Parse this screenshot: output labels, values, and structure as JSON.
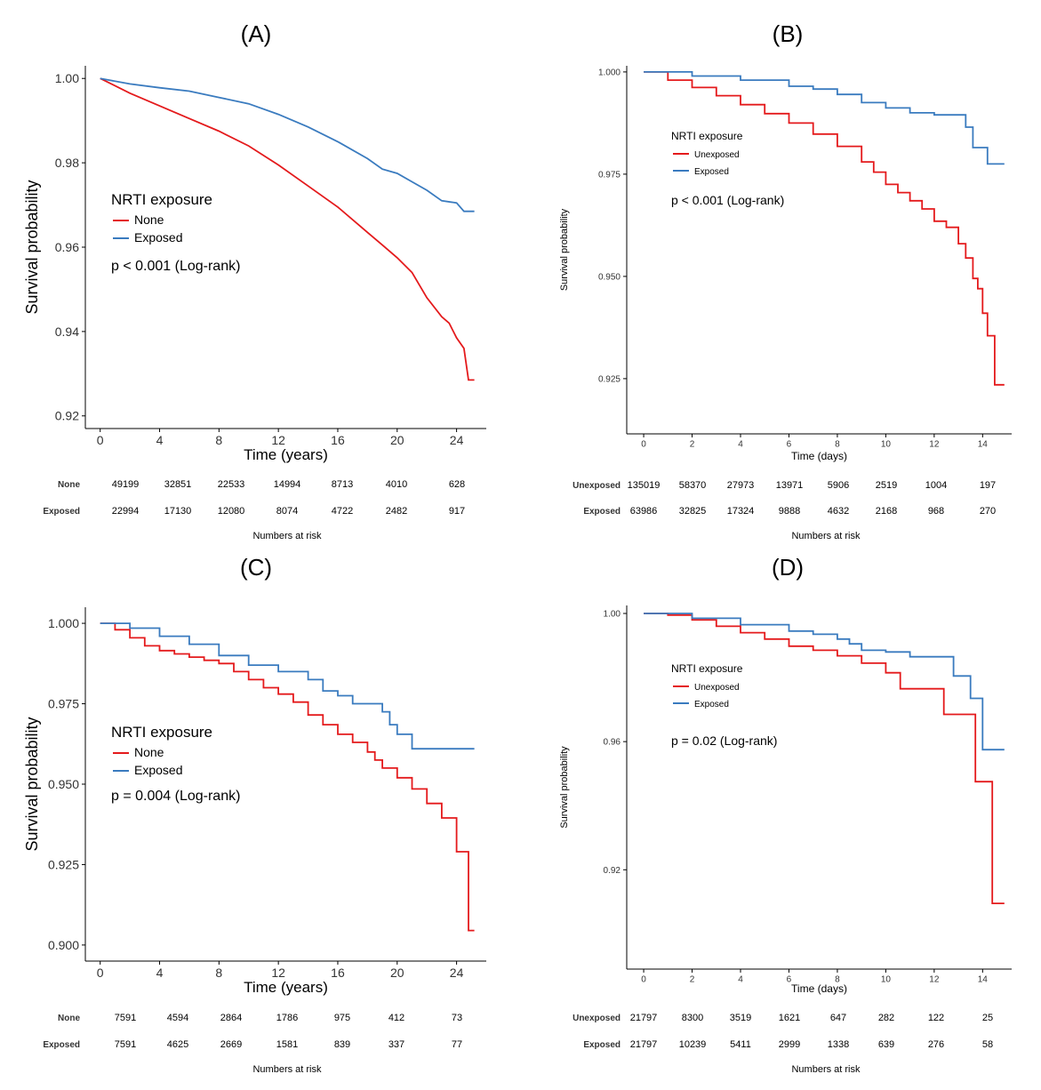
{
  "colors": {
    "unexposed": "#e41a1c",
    "exposed": "#3a7bbf",
    "axis": "#000000",
    "tick_text": "#333333"
  },
  "chart_data": [
    {
      "id": "A",
      "type": "line",
      "panel_label": "(A)",
      "xlabel": "Time (years)",
      "ylabel": "Survival probability",
      "xlim": [
        -1,
        26
      ],
      "ylim": [
        0.917,
        1.003
      ],
      "xticks": [
        0,
        4,
        8,
        12,
        16,
        20,
        24
      ],
      "yticks": [
        0.92,
        0.94,
        0.96,
        0.98,
        1.0
      ],
      "ytick_labels": [
        "0.92",
        "0.94",
        "0.96",
        "0.98",
        "1.00"
      ],
      "legend_title": "NRTI exposure",
      "annotation": "p < 0.001 (Log-rank)",
      "series": [
        {
          "name": "None",
          "color": "#e41a1c",
          "step": false,
          "x": [
            0,
            2,
            4,
            6,
            8,
            10,
            12,
            14,
            16,
            18,
            19,
            20,
            21,
            22,
            23,
            23.5,
            24,
            24.5,
            24.8,
            25.2
          ],
          "y": [
            1.0,
            0.9965,
            0.9935,
            0.9905,
            0.9875,
            0.984,
            0.9795,
            0.9745,
            0.9695,
            0.9635,
            0.9605,
            0.9575,
            0.954,
            0.948,
            0.9435,
            0.942,
            0.9385,
            0.936,
            0.9285,
            0.9285
          ]
        },
        {
          "name": "Exposed",
          "color": "#3a7bbf",
          "step": false,
          "x": [
            0,
            2,
            4,
            6,
            8,
            10,
            12,
            14,
            16,
            18,
            19,
            20,
            21,
            22,
            23,
            24,
            24.5,
            25.2
          ],
          "y": [
            1.0,
            0.9987,
            0.9978,
            0.997,
            0.9955,
            0.994,
            0.9915,
            0.9885,
            0.985,
            0.981,
            0.9785,
            0.9775,
            0.9755,
            0.9735,
            0.971,
            0.9705,
            0.9685,
            0.9685
          ]
        }
      ],
      "risk_table": {
        "title": "Numbers at risk",
        "rows": [
          {
            "label": "None",
            "values": [
              "49199",
              "32851",
              "22533",
              "14994",
              "8713",
              "4010",
              "628"
            ]
          },
          {
            "label": "Exposed",
            "values": [
              "22994",
              "17130",
              "12080",
              "8074",
              "4722",
              "2482",
              "917"
            ]
          }
        ]
      }
    },
    {
      "id": "B",
      "type": "line",
      "panel_label": "(B)",
      "xlabel": "Time (days)",
      "ylabel": "Survival probability",
      "xlim": [
        -0.7,
        15.2
      ],
      "ylim": [
        0.9115,
        1.0015
      ],
      "xticks": [
        0,
        2,
        4,
        6,
        8,
        10,
        12,
        14
      ],
      "yticks": [
        0.925,
        0.95,
        0.975,
        1.0
      ],
      "ytick_labels": [
        "0.925",
        "0.950",
        "0.975",
        "1.000"
      ],
      "legend_title": "NRTI exposure",
      "annotation": "p < 0.001 (Log-rank)",
      "series": [
        {
          "name": "Unexposed",
          "color": "#e41a1c",
          "step": true,
          "x": [
            0,
            1,
            2,
            3,
            4,
            5,
            6,
            7,
            8,
            9,
            9.5,
            10,
            10.5,
            11,
            11.5,
            12,
            12.5,
            13,
            13.3,
            13.6,
            13.8,
            14,
            14.2,
            14.5,
            14.9
          ],
          "y": [
            1.0,
            0.998,
            0.9962,
            0.9942,
            0.992,
            0.9898,
            0.9875,
            0.9848,
            0.9818,
            0.978,
            0.9755,
            0.9725,
            0.9705,
            0.9685,
            0.9665,
            0.9635,
            0.962,
            0.958,
            0.9545,
            0.9495,
            0.947,
            0.941,
            0.9355,
            0.9235,
            0.9235
          ]
        },
        {
          "name": "Exposed",
          "color": "#3a7bbf",
          "step": true,
          "x": [
            0,
            2,
            4,
            6,
            7,
            8,
            9,
            10,
            11,
            12,
            13,
            13.3,
            13.6,
            14,
            14.2,
            14.9
          ],
          "y": [
            1.0,
            0.999,
            0.998,
            0.9965,
            0.9958,
            0.9945,
            0.9925,
            0.9912,
            0.99,
            0.9895,
            0.9895,
            0.9865,
            0.9815,
            0.9815,
            0.9775,
            0.9775
          ]
        }
      ],
      "risk_table": {
        "title": "Numbers at risk",
        "rows": [
          {
            "label": "Unexposed",
            "values": [
              "135019",
              "58370",
              "27973",
              "13971",
              "5906",
              "2519",
              "1004",
              "197"
            ]
          },
          {
            "label": "Exposed",
            "values": [
              "63986",
              "32825",
              "17324",
              "9888",
              "4632",
              "2168",
              "968",
              "270"
            ]
          }
        ]
      }
    },
    {
      "id": "C",
      "type": "line",
      "panel_label": "(C)",
      "xlabel": "Time (years)",
      "ylabel": "Survival probability",
      "xlim": [
        -1,
        26
      ],
      "ylim": [
        0.895,
        1.005
      ],
      "xticks": [
        0,
        4,
        8,
        12,
        16,
        20,
        24
      ],
      "yticks": [
        0.9,
        0.925,
        0.95,
        0.975,
        1.0
      ],
      "ytick_labels": [
        "0.900",
        "0.925",
        "0.950",
        "0.975",
        "1.000"
      ],
      "legend_title": "NRTI exposure",
      "annotation": "p = 0.004 (Log-rank)",
      "series": [
        {
          "name": "None",
          "color": "#e41a1c",
          "step": true,
          "x": [
            0,
            1,
            2,
            3,
            4,
            5,
            6,
            7,
            8,
            9,
            10,
            11,
            12,
            13,
            14,
            15,
            16,
            17,
            18,
            18.5,
            19,
            20,
            21,
            22,
            23,
            24,
            24.8,
            25.2
          ],
          "y": [
            1.0,
            0.998,
            0.9955,
            0.993,
            0.9915,
            0.9905,
            0.9895,
            0.9885,
            0.9875,
            0.985,
            0.9825,
            0.98,
            0.978,
            0.9755,
            0.9715,
            0.9685,
            0.9655,
            0.963,
            0.96,
            0.9575,
            0.955,
            0.952,
            0.9485,
            0.944,
            0.9395,
            0.929,
            0.9045,
            0.9045
          ]
        },
        {
          "name": "Exposed",
          "color": "#3a7bbf",
          "step": true,
          "x": [
            0,
            2,
            4,
            6,
            8,
            10,
            12,
            14,
            15,
            16,
            17,
            18,
            19,
            19.5,
            20,
            21,
            25.2
          ],
          "y": [
            1.0,
            0.9985,
            0.996,
            0.9935,
            0.99,
            0.987,
            0.985,
            0.9825,
            0.979,
            0.9775,
            0.975,
            0.975,
            0.9725,
            0.9685,
            0.9655,
            0.961,
            0.961
          ]
        }
      ],
      "risk_table": {
        "title": "Numbers at risk",
        "rows": [
          {
            "label": "None",
            "values": [
              "7591",
              "4594",
              "2864",
              "1786",
              "975",
              "412",
              "73"
            ]
          },
          {
            "label": "Exposed",
            "values": [
              "7591",
              "4625",
              "2669",
              "1581",
              "839",
              "337",
              "77"
            ]
          }
        ]
      }
    },
    {
      "id": "D",
      "type": "line",
      "panel_label": "(D)",
      "xlabel": "Time (days)",
      "ylabel": "Survival probability",
      "xlim": [
        -0.7,
        15.2
      ],
      "ylim": [
        0.889,
        1.0025
      ],
      "xticks": [
        0,
        2,
        4,
        6,
        8,
        10,
        12,
        14
      ],
      "yticks": [
        0.92,
        0.96,
        1.0
      ],
      "ytick_labels": [
        "0.92",
        "0.96",
        "1.00"
      ],
      "legend_title": "NRTI exposure",
      "annotation": "p = 0.02 (Log-rank)",
      "series": [
        {
          "name": "Unexposed",
          "color": "#e41a1c",
          "step": true,
          "x": [
            0,
            1,
            2,
            3,
            4,
            5,
            6,
            7,
            8,
            9,
            10,
            10.6,
            12.4,
            13.7,
            14.4,
            14.9
          ],
          "y": [
            1.0,
            0.9995,
            0.998,
            0.996,
            0.994,
            0.992,
            0.9898,
            0.9885,
            0.9868,
            0.9845,
            0.9815,
            0.9765,
            0.9685,
            0.9475,
            0.9095,
            0.9095
          ]
        },
        {
          "name": "Exposed",
          "color": "#3a7bbf",
          "step": true,
          "x": [
            0,
            2,
            4,
            6,
            7,
            8,
            8.5,
            9,
            10,
            11,
            12,
            12.8,
            13.5,
            14,
            14.9
          ],
          "y": [
            1.0,
            0.9985,
            0.9965,
            0.9945,
            0.9935,
            0.992,
            0.9905,
            0.9885,
            0.988,
            0.9865,
            0.9865,
            0.9805,
            0.9735,
            0.9575,
            0.9575
          ]
        }
      ],
      "risk_table": {
        "title": "Numbers at risk",
        "rows": [
          {
            "label": "Unexposed",
            "values": [
              "21797",
              "8300",
              "3519",
              "1621",
              "647",
              "282",
              "122",
              "25"
            ]
          },
          {
            "label": "Exposed",
            "values": [
              "21797",
              "10239",
              "5411",
              "2999",
              "1338",
              "639",
              "276",
              "58"
            ]
          }
        ]
      }
    }
  ]
}
